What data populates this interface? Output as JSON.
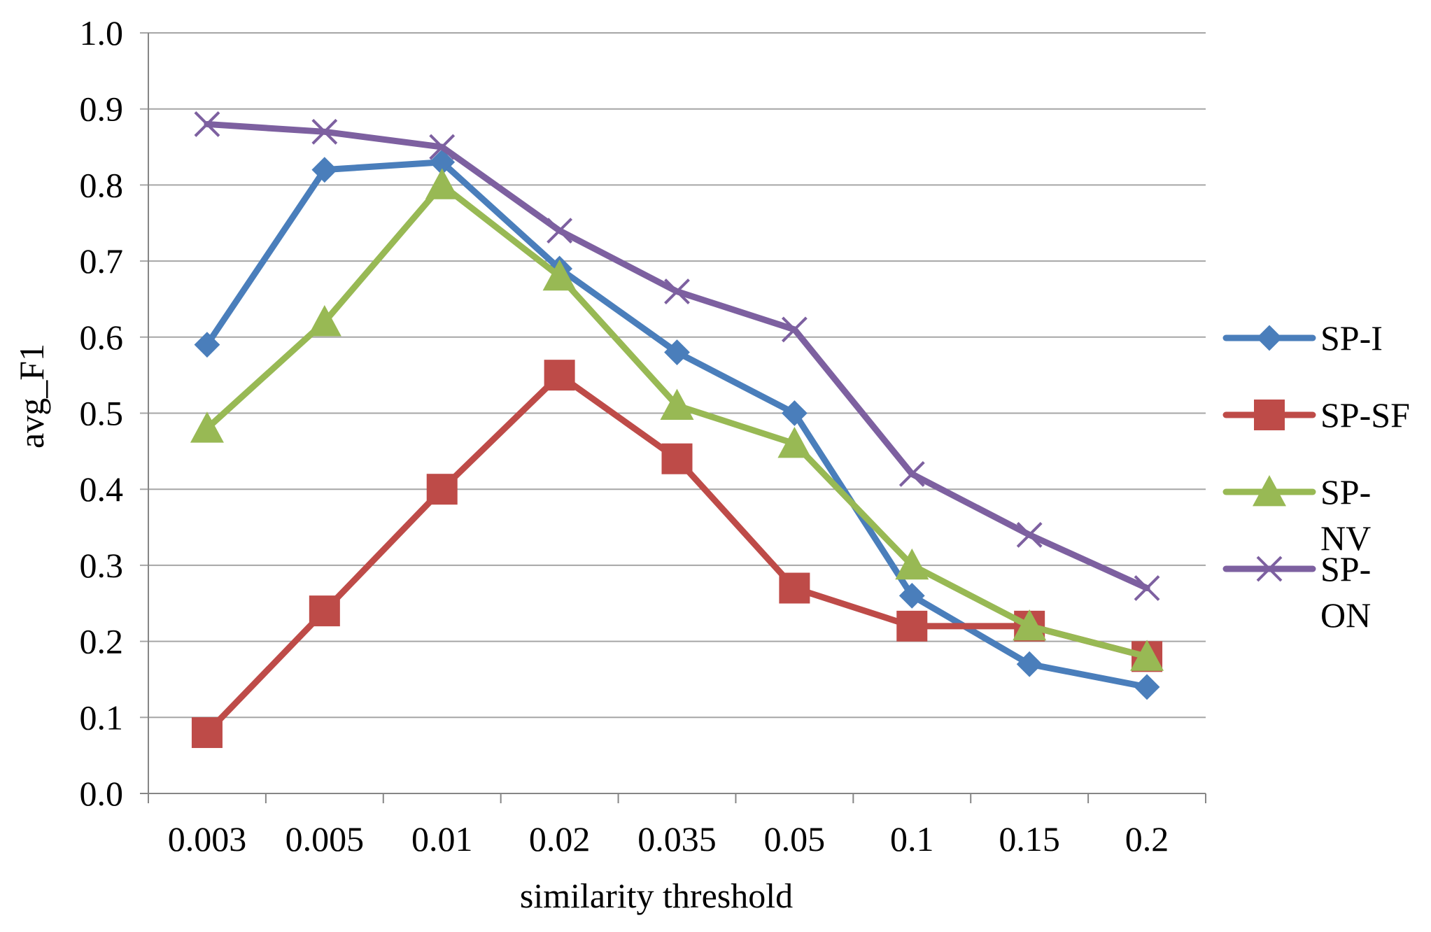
{
  "chart_data": {
    "type": "line",
    "title": "",
    "xlabel": "similarity threshold",
    "ylabel": "avg_F1",
    "categories": [
      "0.003",
      "0.005",
      "0.01",
      "0.02",
      "0.035",
      "0.05",
      "0.1",
      "0.15",
      "0.2"
    ],
    "ylim": [
      0.0,
      1.0
    ],
    "yticks": [
      "0.0",
      "0.1",
      "0.2",
      "0.3",
      "0.4",
      "0.5",
      "0.6",
      "0.7",
      "0.8",
      "0.9",
      "1.0"
    ],
    "grid": true,
    "legend_position": "right",
    "series": [
      {
        "name": "SP-I",
        "legend_lines": [
          "SP-I"
        ],
        "color": "#4a7ebb",
        "marker": "diamond",
        "values": [
          0.59,
          0.82,
          0.83,
          0.69,
          0.58,
          0.5,
          0.26,
          0.17,
          0.14
        ]
      },
      {
        "name": "SP-SF",
        "legend_lines": [
          "SP-SF"
        ],
        "color": "#be4b48",
        "marker": "square",
        "values": [
          0.08,
          0.24,
          0.4,
          0.55,
          0.44,
          0.27,
          0.22,
          0.22,
          0.18
        ]
      },
      {
        "name": "SP-NV",
        "legend_lines": [
          "SP-",
          "NV"
        ],
        "color": "#98b954",
        "marker": "triangle",
        "values": [
          0.48,
          0.62,
          0.8,
          0.68,
          0.51,
          0.46,
          0.3,
          0.22,
          0.18
        ]
      },
      {
        "name": "SP-ON",
        "legend_lines": [
          "SP-",
          "ON"
        ],
        "color": "#7d60a0",
        "marker": "x",
        "values": [
          0.88,
          0.87,
          0.85,
          0.74,
          0.66,
          0.61,
          0.42,
          0.34,
          0.27
        ]
      }
    ]
  }
}
